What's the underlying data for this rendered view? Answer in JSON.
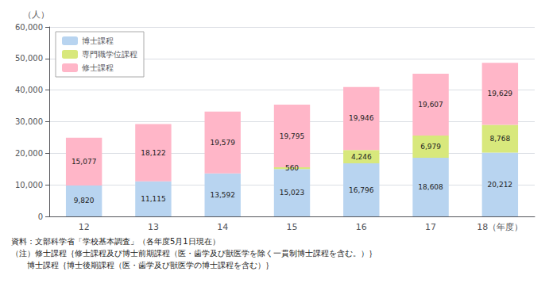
{
  "chart_data": {
    "type": "bar",
    "stacked": true,
    "data_labels": true,
    "grid": true,
    "legend": "upper left",
    "ylabel": "（人）",
    "categories": [
      "12",
      "13",
      "14",
      "15",
      "16",
      "17",
      "18（年度）"
    ],
    "series": [
      {
        "name": "博士課程",
        "color": "#b8d4f0",
        "values": [
          9820,
          11115,
          13592,
          15023,
          16796,
          18608,
          20212
        ],
        "value_labels": [
          "9,820",
          "11,115",
          "13,592",
          "15,023",
          "16,796",
          "18,608",
          "20,212"
        ]
      },
      {
        "name": "専門職学位課程",
        "color": "#d8e87c",
        "values": [
          0,
          0,
          0,
          560,
          4246,
          6979,
          8768
        ],
        "value_labels": [
          null,
          null,
          null,
          "560",
          "4,246",
          "6,979",
          "8,768"
        ]
      },
      {
        "name": "修士課程",
        "color": "#ffb6c8",
        "values": [
          15077,
          18122,
          19579,
          19795,
          19946,
          19607,
          19629
        ],
        "value_labels": [
          "15,077",
          "18,122",
          "19,579",
          "19,795",
          "19,946",
          "19,607",
          "19,629"
        ]
      }
    ],
    "totals": [
      24897,
      29237,
      33171,
      35378,
      40988,
      45194,
      48609
    ],
    "total_labels": [
      "24,897",
      "29,237",
      "33,171",
      "35,378",
      "40,988",
      "45,194",
      "48,609"
    ],
    "ylim": [
      0,
      60000
    ],
    "yticks": [
      0,
      {
        "value": 10000,
        "label": "10,000"
      },
      {
        "value": 20000,
        "label": "20,000"
      },
      {
        "value": 30000,
        "label": "30,000"
      },
      {
        "value": 40000,
        "label": "40,000"
      },
      {
        "value": 50000,
        "label": "50,000"
      },
      {
        "value": 60000,
        "label": "60,000"
      }
    ],
    "annotations": [
      "資料：文部科学省「学校基本調査」（各年度5月1日現在）",
      "（注）修士課程｛修士課程及び博士前期課程（医・歯学及び獣医学を除く一貫制博士課程を含む。）｝",
      "　　博士課程｛博士後期課程（医・歯学及び獣医学の博士課程を含む）｝"
    ]
  }
}
